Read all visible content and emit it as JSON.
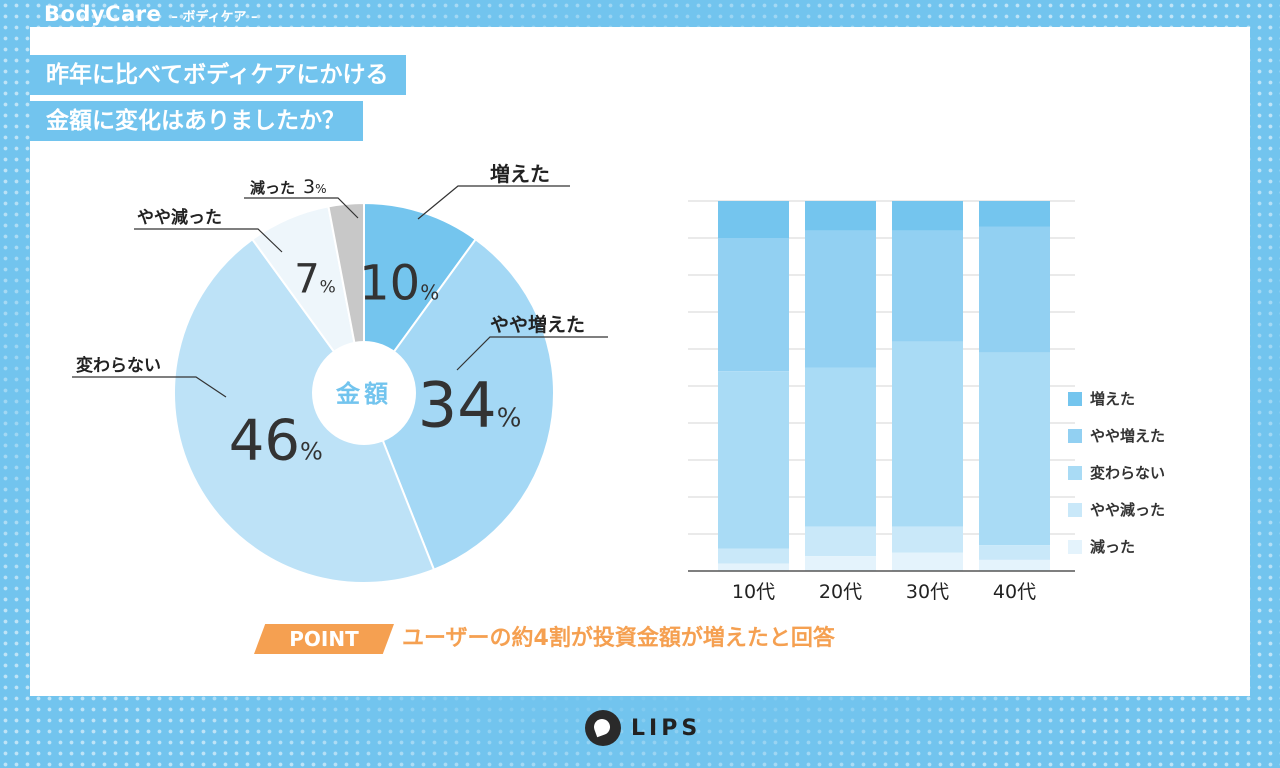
{
  "header": {
    "brand": "BodyCare",
    "brand_sub": "– ボディケア –"
  },
  "question": {
    "line1": "昨年に比べてボディケアにかける",
    "line2": "金額に変化はありましたか？"
  },
  "pie": {
    "center_label": "金額"
  },
  "chart_data": [
    {
      "type": "pie",
      "title": "昨年に比べてボディケアにかける金額に変化はありましたか？",
      "center_label": "金額",
      "labels": [
        "増えた",
        "やや増えた",
        "変わらない",
        "やや減った",
        "減った"
      ],
      "values": [
        10,
        34,
        46,
        7,
        3
      ],
      "value_texts": [
        "10",
        "34",
        "46",
        "7",
        "3"
      ],
      "unit": "%",
      "colors": [
        "#74c5ee",
        "#a4d8f5",
        "#bde2f7",
        "#eef6fb",
        "#c8c8c8"
      ]
    },
    {
      "type": "bar",
      "stacked": true,
      "percent": true,
      "categories": [
        "10代",
        "20代",
        "30代",
        "40代"
      ],
      "series": [
        {
          "name": "増えた",
          "values": [
            10,
            8,
            8,
            7
          ],
          "color": "#74c5ee"
        },
        {
          "name": "やや増えた",
          "values": [
            36,
            37,
            30,
            34
          ],
          "color": "#92d0f2"
        },
        {
          "name": "変わらない",
          "values": [
            48,
            43,
            50,
            52
          ],
          "color": "#a9dbf5"
        },
        {
          "name": "やや減った",
          "values": [
            4,
            8,
            7,
            4
          ],
          "color": "#c9e8f9"
        },
        {
          "name": "減った",
          "values": [
            2,
            4,
            5,
            3
          ],
          "color": "#e4f3fc"
        }
      ],
      "ylim": [
        0,
        100
      ],
      "grid": true,
      "legend": "right"
    }
  ],
  "legend_items": [
    {
      "label": "増えた",
      "color": "#74c5ee"
    },
    {
      "label": "やや増えた",
      "color": "#92d0f2"
    },
    {
      "label": "変わらない",
      "color": "#a9dbf5"
    },
    {
      "label": "やや減った",
      "color": "#c9e8f9"
    },
    {
      "label": "減った",
      "color": "#e4f3fc"
    }
  ],
  "point": {
    "badge": "POINT",
    "text": "ユーザーの約4割が投資金額が増えたと回答"
  },
  "footer": {
    "logo_text": "LIPS"
  }
}
